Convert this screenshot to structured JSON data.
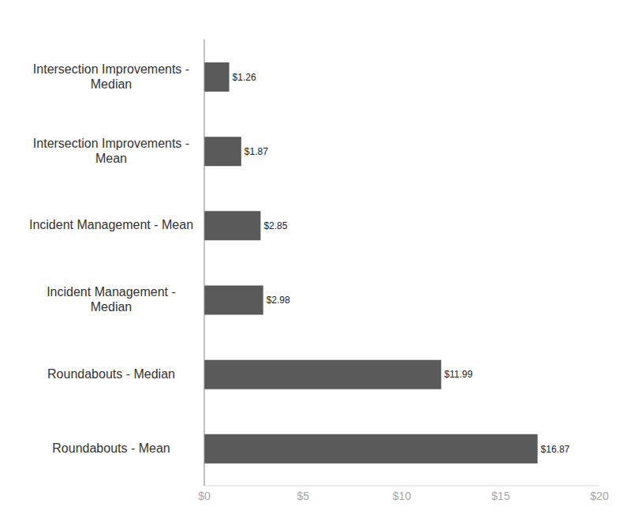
{
  "chart_data": {
    "type": "bar",
    "orientation": "horizontal",
    "categories": [
      "Intersection Improvements - Median",
      "Intersection Improvements - Mean",
      "Incident Management - Mean",
      "Incident Management - Median",
      "Roundabouts - Median",
      "Roundabouts - Mean"
    ],
    "values": [
      1.26,
      1.87,
      2.85,
      2.98,
      11.99,
      16.87
    ],
    "value_labels": [
      "$1.26",
      "$1.87",
      "$2.85",
      "$2.98",
      "$11.99",
      "$16.87"
    ],
    "color": "#595959",
    "xlim": [
      0,
      20
    ],
    "xticks": [
      {
        "value": 0,
        "label": "$0"
      },
      {
        "value": 5,
        "label": "$5"
      },
      {
        "value": 10,
        "label": "$10"
      },
      {
        "value": 15,
        "label": "$15"
      },
      {
        "value": 20,
        "label": "$20"
      }
    ],
    "grid": false,
    "data_labels": true
  }
}
